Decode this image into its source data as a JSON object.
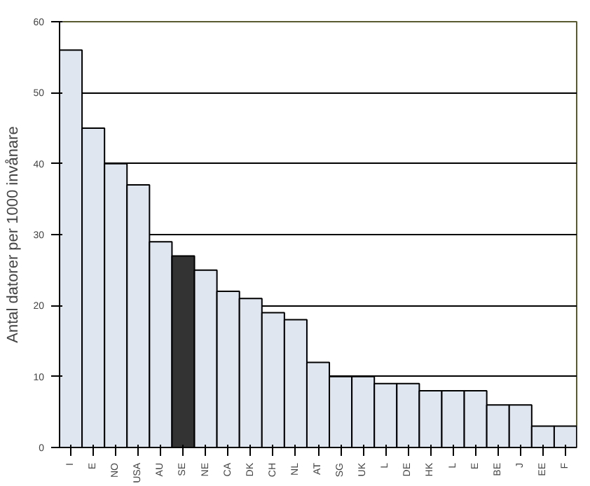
{
  "chart_data": {
    "type": "bar",
    "ylabel": "Antal datorer per 1000 invånare",
    "categories": [
      "I",
      "E",
      "NO",
      "USA",
      "AU",
      "SE",
      "NE",
      "CA",
      "DK",
      "CH",
      "NL",
      "AT",
      "SG",
      "UK",
      "L",
      "DE",
      "HK",
      "L",
      "E",
      "BE",
      "J",
      "EE",
      "F"
    ],
    "values": [
      56,
      45,
      40,
      37,
      29,
      27,
      25,
      22,
      21,
      19,
      18,
      12,
      10,
      10,
      9,
      9,
      8,
      8,
      8,
      6,
      6,
      3,
      3
    ],
    "colors": [
      "#dfe6f0",
      "#dfe6f0",
      "#dfe6f0",
      "#dfe6f0",
      "#dfe6f0",
      "#333333",
      "#dfe6f0",
      "#dfe6f0",
      "#dfe6f0",
      "#dfe6f0",
      "#dfe6f0",
      "#dfe6f0",
      "#dfe6f0",
      "#dfe6f0",
      "#dfe6f0",
      "#dfe6f0",
      "#dfe6f0",
      "#dfe6f0",
      "#dfe6f0",
      "#dfe6f0",
      "#dfe6f0",
      "#dfe6f0",
      "#dfe6f0"
    ],
    "ylim": [
      0,
      60
    ],
    "yticks": [
      0,
      10,
      20,
      30,
      40,
      50,
      60
    ],
    "grid": "y"
  }
}
